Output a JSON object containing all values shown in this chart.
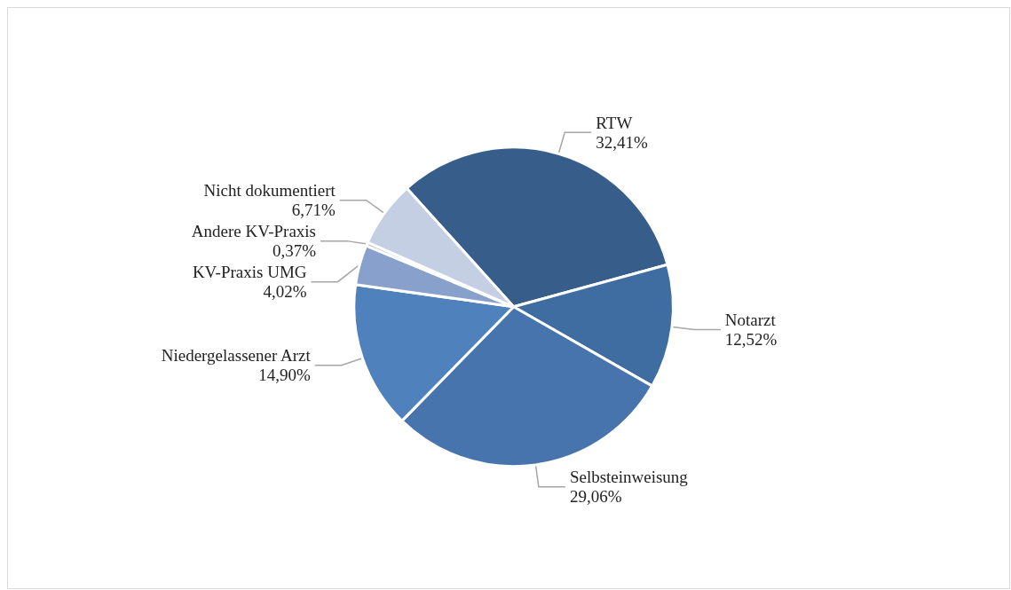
{
  "chart_data": {
    "type": "pie",
    "categories": [
      "RTW",
      "Notarzt",
      "Selbsteinweisung",
      "Niedergelassener Arzt",
      "KV-Praxis UMG",
      "Andere KV-Praxis",
      "Nicht dokumentiert"
    ],
    "values": [
      32.41,
      12.52,
      29.06,
      14.9,
      4.02,
      0.37,
      6.71
    ],
    "value_labels": [
      "32,41%",
      "12,52%",
      "29,06%",
      "14,90%",
      "4,02%",
      "0,37%",
      "6,71%"
    ],
    "colors": [
      "#375d8a",
      "#3f6ca1",
      "#4774ad",
      "#4f81bd",
      "#87a0cc",
      "#a9b9da",
      "#c4cfe3"
    ],
    "legend": false
  }
}
